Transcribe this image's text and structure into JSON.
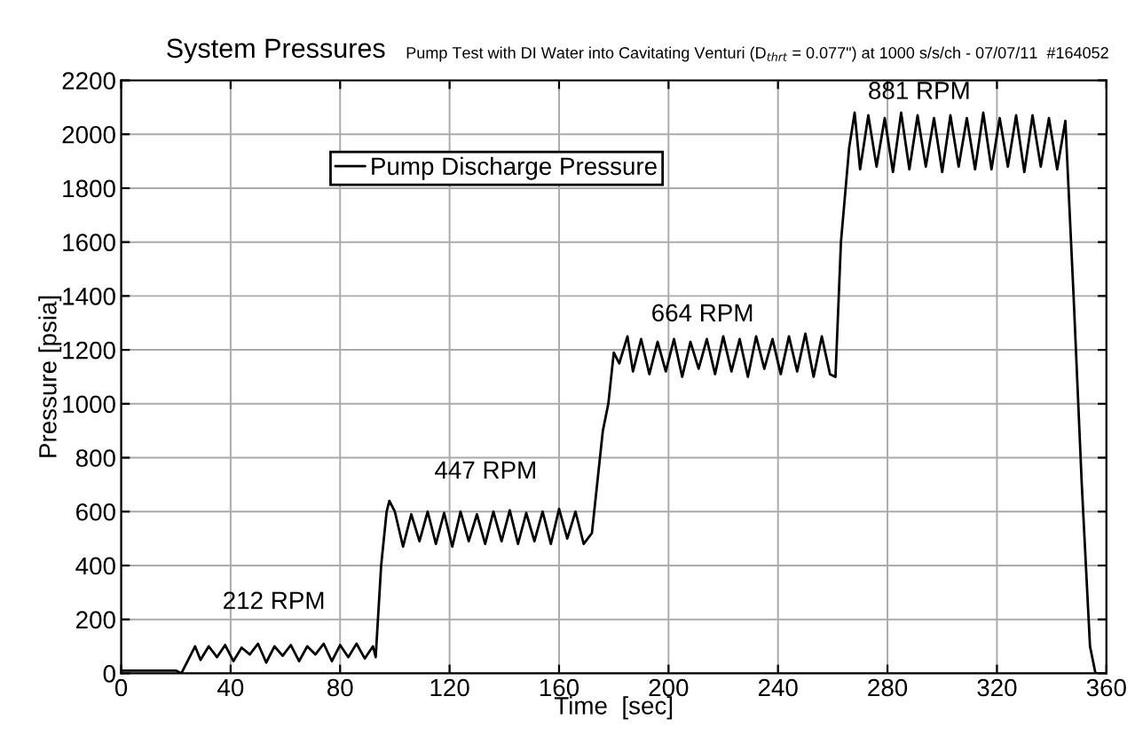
{
  "chart_data": {
    "type": "line",
    "title": "System Pressures",
    "subtitle": "Pump Test with DI Water into Cavitating Venturi (D$_{thrt}$ = 0.077\") at 1000 s/s/ch - 07/07/11  #164052",
    "xlabel": "Time  [sec]",
    "ylabel": "Pressure [psia]",
    "series": [
      {
        "name": "Pump Discharge Pressure",
        "color": "#000000",
        "x": [
          0,
          20,
          22,
          27,
          29,
          32,
          35,
          38,
          41,
          44,
          47,
          50,
          53,
          56,
          59,
          62,
          65,
          68,
          71,
          74,
          77,
          80,
          83,
          86,
          89,
          92,
          93,
          95,
          97,
          98,
          100,
          103,
          106,
          109,
          112,
          115,
          118,
          121,
          124,
          127,
          130,
          133,
          136,
          139,
          142,
          145,
          148,
          151,
          154,
          157,
          160,
          163,
          166,
          169,
          172,
          176,
          178,
          180,
          182,
          185,
          187,
          190,
          193,
          196,
          199,
          202,
          205,
          208,
          211,
          214,
          217,
          220,
          223,
          226,
          229,
          232,
          235,
          238,
          241,
          244,
          247,
          250,
          253,
          256,
          259,
          261,
          263,
          266,
          268,
          270,
          273,
          276,
          279,
          282,
          285,
          288,
          291,
          294,
          297,
          300,
          303,
          306,
          309,
          312,
          315,
          318,
          321,
          324,
          327,
          330,
          333,
          336,
          339,
          342,
          345,
          348,
          351,
          354,
          356,
          360
        ],
        "values": [
          10,
          10,
          0,
          100,
          50,
          100,
          60,
          105,
          45,
          95,
          70,
          110,
          40,
          100,
          65,
          105,
          45,
          100,
          70,
          110,
          45,
          105,
          60,
          110,
          55,
          100,
          60,
          400,
          600,
          640,
          600,
          470,
          590,
          490,
          600,
          480,
          595,
          470,
          600,
          490,
          590,
          480,
          600,
          490,
          605,
          480,
          595,
          490,
          600,
          480,
          610,
          500,
          600,
          480,
          520,
          900,
          1000,
          1190,
          1150,
          1250,
          1120,
          1240,
          1110,
          1230,
          1120,
          1240,
          1100,
          1230,
          1130,
          1240,
          1110,
          1250,
          1120,
          1240,
          1100,
          1250,
          1130,
          1240,
          1110,
          1250,
          1120,
          1260,
          1100,
          1250,
          1110,
          1100,
          1600,
          1950,
          2080,
          1870,
          2070,
          1880,
          2060,
          1860,
          2080,
          1870,
          2070,
          1880,
          2060,
          1860,
          2070,
          1880,
          2060,
          1870,
          2080,
          1870,
          2060,
          1880,
          2070,
          1860,
          2070,
          1880,
          2060,
          1870,
          2050,
          1400,
          700,
          100,
          0,
          0
        ]
      }
    ],
    "annotations": [
      "212 RPM",
      "447 RPM",
      "664 RPM",
      "881 RPM"
    ],
    "xlim": [
      0,
      360
    ],
    "xticks": [
      0,
      40,
      80,
      120,
      160,
      200,
      240,
      280,
      320,
      360
    ],
    "ylim": [
      0,
      2200
    ],
    "yticks": [
      0,
      200,
      400,
      600,
      800,
      1000,
      1200,
      1400,
      1600,
      1800,
      2000,
      2200
    ],
    "grid": true,
    "legend": "top left",
    "marker": "none",
    "line_style": "solid"
  }
}
